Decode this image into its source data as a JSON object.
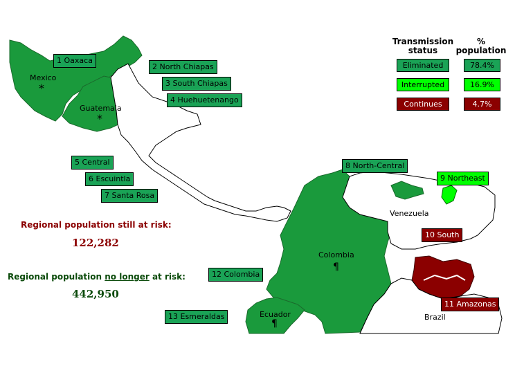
{
  "colors": {
    "eliminated": "#1aa356",
    "interrupted": "#00ff00",
    "continues": "#8b0000",
    "country_fill": "#1a9a3c"
  },
  "foci": {
    "f1": "1 Oaxaca",
    "f2": "2 North Chiapas",
    "f3": "3 South Chiapas",
    "f4": "4 Huehuetenango",
    "f5": "5 Central",
    "f6": "6 Escuintla",
    "f7": "7 Santa Rosa",
    "f8": "8 North-Central",
    "f9": "9 Northeast",
    "f10": "10 South",
    "f11": "11 Amazonas",
    "f12": "12 Colombia",
    "f13": "13 Esmeraldas"
  },
  "countries": {
    "mexico": "Mexico",
    "guatemala": "Guatemala",
    "venezuela": "Venezuela",
    "colombia": "Colombia",
    "ecuador": "Ecuador",
    "brazil": "Brazil"
  },
  "symbols": {
    "star": "*",
    "pilcrow": "¶"
  },
  "legend": {
    "status_header": "Transmission status",
    "pct_header": "% population",
    "rows": [
      {
        "status": "Eliminated",
        "pct": "78.4%"
      },
      {
        "status": "Interrupted",
        "pct": "16.9%"
      },
      {
        "status": "Continues",
        "pct": "4.7%"
      }
    ]
  },
  "risk": {
    "still_title": "Regional population still at risk:",
    "still_value": "122,282",
    "no_longer_prefix": "Regional population ",
    "no_longer_underlined": "no longer",
    "no_longer_suffix": " at risk:",
    "no_longer_value": "442,950"
  }
}
